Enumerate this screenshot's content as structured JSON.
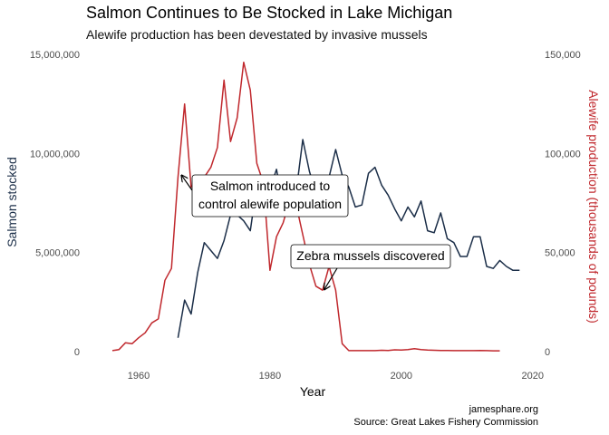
{
  "chart_data": {
    "type": "line",
    "title": "Salmon Continues to Be Stocked in Lake Michigan",
    "subtitle": "Alewife production has been devestated by invasive mussels",
    "xlabel": "Year",
    "ylabel_left": "Salmon stocked",
    "ylabel_right": "Alewife production (thousands of pounds)",
    "xlim": [
      1952,
      2021
    ],
    "xticks": [
      "1960",
      "1980",
      "2000",
      "2020"
    ],
    "ylim_left": [
      0,
      15000000
    ],
    "ylim_right": [
      0,
      150000
    ],
    "yticks_left": [
      "0",
      "5,000,000",
      "10,000,000",
      "15,000,000"
    ],
    "yticks_right": [
      "0",
      "50,000",
      "100,000",
      "150,000"
    ],
    "grid": false,
    "colors": {
      "salmon": "#1b2e48",
      "alewife": "#c0282d"
    },
    "series": [
      {
        "name": "Salmon stocked",
        "axis": "left",
        "x": [
          1966,
          1967,
          1968,
          1969,
          1970,
          1971,
          1972,
          1973,
          1974,
          1975,
          1976,
          1977,
          1978,
          1979,
          1980,
          1981,
          1982,
          1983,
          1984,
          1985,
          1986,
          1987,
          1988,
          1989,
          1990,
          1991,
          1992,
          1993,
          1994,
          1995,
          1996,
          1997,
          1998,
          1999,
          2000,
          2001,
          2002,
          2003,
          2004,
          2005,
          2006,
          2007,
          2008,
          2009,
          2010,
          2011,
          2012,
          2013,
          2014,
          2015,
          2016,
          2017,
          2018
        ],
        "values": [
          700000,
          2600000,
          1900000,
          4000000,
          5500000,
          5100000,
          4700000,
          5600000,
          6900000,
          6900000,
          6600000,
          6100000,
          8400000,
          8300000,
          8200000,
          9200000,
          7300000,
          8700000,
          8100000,
          10700000,
          9100000,
          8000000,
          8100000,
          8800000,
          10200000,
          8900000,
          8300000,
          7300000,
          7400000,
          9000000,
          9300000,
          8400000,
          7900000,
          7200000,
          6600000,
          7300000,
          6800000,
          7600000,
          6100000,
          6000000,
          7000000,
          5700000,
          5500000,
          4800000,
          4800000,
          5800000,
          5800000,
          4300000,
          4200000,
          4600000,
          4300000,
          4100000,
          4100000
        ]
      },
      {
        "name": "Alewife production",
        "axis": "right",
        "x": [
          1956,
          1957,
          1958,
          1959,
          1960,
          1961,
          1962,
          1963,
          1964,
          1965,
          1966,
          1967,
          1968,
          1969,
          1970,
          1971,
          1972,
          1973,
          1974,
          1975,
          1976,
          1977,
          1978,
          1979,
          1980,
          1981,
          1982,
          1983,
          1984,
          1985,
          1986,
          1987,
          1988,
          1989,
          1990,
          1991,
          1992,
          1993,
          1994,
          1995,
          1996,
          1997,
          1998,
          1999,
          2000,
          2001,
          2002,
          2003,
          2004,
          2005,
          2006,
          2007,
          2008,
          2009,
          2010,
          2011,
          2012,
          2013,
          2014,
          2015
        ],
        "values": [
          500,
          1000,
          4500,
          4000,
          7000,
          9500,
          14500,
          16500,
          36000,
          42000,
          88000,
          125000,
          83000,
          87000,
          88000,
          93000,
          103000,
          137000,
          106000,
          118000,
          146000,
          132000,
          95000,
          85000,
          41000,
          58000,
          65000,
          76000,
          74000,
          59000,
          44000,
          33000,
          31000,
          43000,
          31000,
          4000,
          500,
          500,
          500,
          500,
          500,
          700,
          600,
          900,
          800,
          1000,
          1500,
          1000,
          800,
          700,
          600,
          600,
          500,
          500,
          500,
          500,
          600,
          500,
          400,
          400
        ]
      }
    ],
    "annotations": [
      {
        "lines": [
          "Salmon introduced to",
          "control alewife population"
        ],
        "point_x": 1966,
        "point_y_right": 88000
      },
      {
        "lines": [
          "Zebra mussels discovered"
        ],
        "point_x": 1988,
        "point_y_right": 30000
      }
    ],
    "caption": [
      "jamesphare.org",
      "Source: Great Lakes Fishery Commission"
    ]
  }
}
